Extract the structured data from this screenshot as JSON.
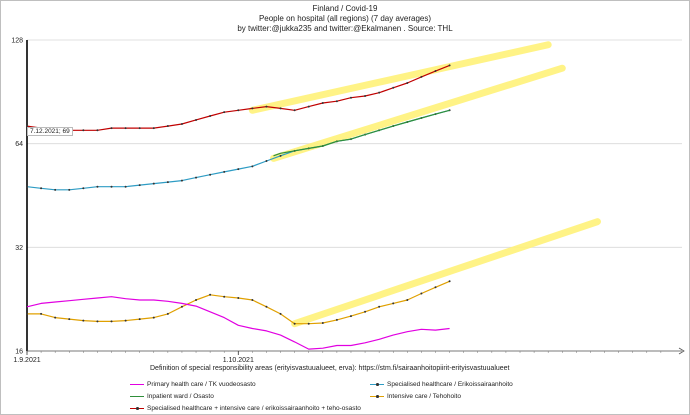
{
  "chart_data": {
    "type": "line",
    "title_lines": [
      "Finland / Covid-19",
      "People on hospital (all regions) (7 day averages)",
      "by twitter:@jukka235 and twitter:@Ekalmanen . Source: THL"
    ],
    "xlabel": "Definition of special responsibility areas (erityisvastuualueet, erva):   https://stm.fi/sairaanhoitopiirit-erityisvastuualueet",
    "x_tick_labels": [
      "1.9.2021",
      "1.10.2021"
    ],
    "y_scale": "log2",
    "ylim": [
      16,
      128
    ],
    "y_ticks": [
      16,
      32,
      64,
      128
    ],
    "annotation": "7.12.2021; 69",
    "series": [
      {
        "name": "Specialised healthcare + intensive care / erikoissairaanhoito + teho-osasto",
        "color": "#c00000",
        "marker": true,
        "x": [
          0,
          2,
          4,
          6,
          8,
          10,
          12,
          14,
          16,
          18,
          20,
          22,
          24,
          26,
          28,
          30,
          32,
          34,
          36,
          38,
          40,
          42,
          44,
          46,
          48,
          50,
          52,
          54,
          56,
          58,
          60
        ],
        "values": [
          72,
          71,
          70,
          70,
          70,
          70,
          71,
          71,
          71,
          71,
          72,
          73,
          75,
          77,
          79,
          80,
          81,
          82,
          81,
          80,
          82,
          84,
          85,
          87,
          88,
          90,
          93,
          96,
          100,
          104,
          108
        ]
      },
      {
        "name": "Specialised healthcare / Erikoissairaanhoito",
        "color": "#2e9cc4",
        "marker": true,
        "x": [
          0,
          2,
          4,
          6,
          8,
          10,
          12,
          14,
          16,
          18,
          20,
          22,
          24,
          26,
          28,
          30,
          32,
          34,
          36,
          38,
          40,
          42,
          44,
          46,
          48,
          50,
          52,
          54,
          56,
          58,
          60
        ],
        "values": [
          48,
          47.5,
          47,
          47,
          47.5,
          48,
          48,
          48,
          48.5,
          49,
          49.5,
          50,
          51,
          52,
          53,
          54,
          55,
          57,
          59,
          61,
          62,
          63,
          65,
          66,
          68,
          70,
          72,
          74,
          76,
          78,
          80
        ]
      },
      {
        "name": "Inpatient ward / Osasto",
        "color": "#2f8f3a",
        "marker": false,
        "x": [
          35,
          36,
          38,
          40,
          42,
          44,
          46,
          48,
          50,
          52,
          54,
          56,
          58,
          60
        ],
        "values": [
          59,
          60,
          61,
          62,
          63,
          65,
          66,
          68,
          70,
          72,
          74,
          76,
          78,
          80
        ]
      },
      {
        "name": "Intensive care / Tehohoito",
        "color": "#e0a000",
        "marker": true,
        "x": [
          0,
          2,
          4,
          6,
          8,
          10,
          12,
          14,
          16,
          18,
          20,
          22,
          24,
          26,
          28,
          30,
          32,
          34,
          36,
          38,
          40,
          42,
          44,
          46,
          48,
          50,
          52,
          54,
          56,
          58,
          60
        ],
        "values": [
          20.5,
          20.5,
          20,
          19.8,
          19.6,
          19.5,
          19.5,
          19.6,
          19.8,
          20,
          20.5,
          21.5,
          22.5,
          23.3,
          23,
          22.8,
          22.5,
          21.5,
          20.5,
          19.2,
          19.2,
          19.3,
          19.7,
          20.2,
          20.8,
          21.5,
          22,
          22.5,
          23.5,
          24.5,
          25.5
        ]
      },
      {
        "name": "Primary health care / TK vuodeosasto",
        "color": "#e100e1",
        "marker": false,
        "x": [
          0,
          2,
          4,
          6,
          8,
          10,
          12,
          14,
          16,
          18,
          20,
          22,
          24,
          26,
          28,
          30,
          32,
          34,
          36,
          38,
          40,
          42,
          44,
          46,
          48,
          50,
          52,
          54,
          56,
          58,
          60
        ],
        "values": [
          21.5,
          22,
          22.2,
          22.4,
          22.6,
          22.8,
          23,
          22.7,
          22.5,
          22.5,
          22.3,
          22,
          21.6,
          20.8,
          20,
          19,
          18.6,
          18.3,
          17.8,
          17,
          16.2,
          16.3,
          16.6,
          16.6,
          16.9,
          17.3,
          17.8,
          18.2,
          18.5,
          18.4,
          18.6
        ]
      }
    ],
    "legend": [
      "Primary health care / TK vuodeosasto",
      "Specialised healthcare / Erikoissairaanhoito",
      "Inpatient ward / Osasto",
      "Intensive care / Tehohoito",
      "Specialised healthcare + intensive care / erikoissairaanhoito + teho-osasto"
    ],
    "legend_colors": [
      "#e100e1",
      "#2e9cc4",
      "#2f8f3a",
      "#e0a000",
      "#c00000"
    ],
    "trend_color": "#fff27a",
    "trends": [
      {
        "from": [
          32,
          80
        ],
        "to": [
          74,
          124
        ]
      },
      {
        "from": [
          35,
          58
        ],
        "to": [
          76,
          106
        ]
      },
      {
        "from": [
          38,
          19.2
        ],
        "to": [
          81,
          38
        ]
      }
    ]
  }
}
